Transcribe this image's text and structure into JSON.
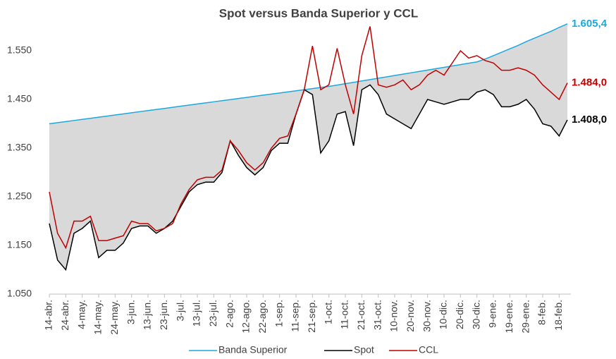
{
  "chart_data": {
    "type": "line",
    "title": "Spot versus Banda Superior y CCL",
    "categories": [
      "14-abr.",
      null,
      "24-abr.",
      null,
      "4-may.",
      null,
      "14-may.",
      null,
      "24-may.",
      null,
      "3-jun.",
      null,
      "13-jun.",
      null,
      "23-jun.",
      null,
      "3-jul.",
      null,
      "13-jul.",
      null,
      "23-jul.",
      null,
      "2-ago.",
      null,
      "12-ago.",
      null,
      "22-ago.",
      null,
      "1-sep.",
      null,
      "11-sep.",
      null,
      "21-sep.",
      null,
      "1-oct.",
      null,
      "11-oct.",
      null,
      "21-oct.",
      null,
      "31-oct.",
      null,
      "10-nov.",
      null,
      "20-nov.",
      null,
      "30-nov.",
      null,
      "10-dic.",
      null,
      "20-dic.",
      null,
      "30-dic.",
      null,
      "9-ene.",
      null,
      "19-ene.",
      null,
      "29-ene.",
      null,
      "8-feb.",
      null,
      "18-feb.",
      null
    ],
    "series": [
      {
        "name": "Banda Superior",
        "color": "#1ba8e0",
        "values": [
          1400,
          1402.3,
          1404.5,
          1406.8,
          1409.0,
          1411.3,
          1413.6,
          1415.8,
          1418.1,
          1420.3,
          1422.6,
          1424.9,
          1427.1,
          1429.4,
          1431.6,
          1433.9,
          1436.2,
          1438.4,
          1440.7,
          1442.9,
          1445.2,
          1447.5,
          1449.7,
          1452.0,
          1454.2,
          1456.5,
          1458.8,
          1461.0,
          1463.3,
          1465.5,
          1467.8,
          1470.1,
          1472.3,
          1474.6,
          1476.8,
          1479.6,
          1482.4,
          1485.2,
          1488.0,
          1490.8,
          1493.6,
          1496.4,
          1499.2,
          1502.0,
          1504.8,
          1507.6,
          1510.4,
          1513.2,
          1516.0,
          1518.8,
          1521.6,
          1524.4,
          1527.2,
          1533,
          1540,
          1547,
          1554,
          1561,
          1569,
          1576,
          1583,
          1590,
          1598,
          1605.4
        ],
        "value_labels": [
          null,
          null,
          null,
          null,
          null,
          null,
          null,
          null,
          null,
          null,
          null,
          null,
          null,
          null,
          null,
          null,
          null,
          null,
          null,
          null,
          null,
          null,
          null,
          null,
          null,
          null,
          null,
          null,
          null,
          null,
          null,
          null,
          null,
          null,
          null,
          null,
          null,
          null,
          null,
          null,
          null,
          null,
          null,
          null,
          null,
          null,
          null,
          null,
          null,
          null,
          null,
          null,
          null,
          null,
          null,
          null,
          null,
          null,
          null,
          null,
          null,
          null,
          null,
          "1.605,4"
        ]
      },
      {
        "name": "Spot",
        "color": "#000000",
        "values": [
          1195,
          1120,
          1100,
          1175,
          1185,
          1200,
          1125,
          1140,
          1140,
          1155,
          1185,
          1190,
          1190,
          1175,
          1185,
          1200,
          1230,
          1260,
          1275,
          1280,
          1280,
          1300,
          1365,
          1335,
          1310,
          1295,
          1310,
          1345,
          1360,
          1360,
          1420,
          1470,
          1460,
          1340,
          1365,
          1420,
          1425,
          1355,
          1470,
          1480,
          1460,
          1420,
          1410,
          1400,
          1390,
          1420,
          1450,
          1445,
          1440,
          1445,
          1450,
          1450,
          1465,
          1470,
          1460,
          1435,
          1435,
          1440,
          1450,
          1430,
          1400,
          1395,
          1375,
          1408.0
        ],
        "value_labels": [
          null,
          null,
          null,
          null,
          null,
          null,
          null,
          null,
          null,
          null,
          null,
          null,
          null,
          null,
          null,
          null,
          null,
          null,
          null,
          null,
          null,
          null,
          null,
          null,
          null,
          null,
          null,
          null,
          null,
          null,
          null,
          null,
          null,
          null,
          null,
          null,
          null,
          null,
          null,
          null,
          null,
          null,
          null,
          null,
          null,
          null,
          null,
          null,
          null,
          null,
          null,
          null,
          null,
          null,
          null,
          null,
          null,
          null,
          null,
          null,
          null,
          null,
          null,
          "1.408,0"
        ]
      },
      {
        "name": "CCL",
        "color": "#c00000",
        "values": [
          1260,
          1175,
          1145,
          1200,
          1200,
          1210,
          1160,
          1160,
          1165,
          1170,
          1200,
          1195,
          1195,
          1180,
          1185,
          1195,
          1235,
          1265,
          1285,
          1290,
          1290,
          1305,
          1365,
          1345,
          1320,
          1305,
          1320,
          1350,
          1370,
          1375,
          1420,
          1470,
          1560,
          1470,
          1480,
          1555,
          1480,
          1420,
          1540,
          1600,
          1480,
          1475,
          1480,
          1490,
          1470,
          1480,
          1500,
          1510,
          1500,
          1525,
          1550,
          1535,
          1540,
          1530,
          1525,
          1510,
          1510,
          1515,
          1510,
          1500,
          1480,
          1465,
          1450,
          1484.0
        ],
        "value_labels": [
          null,
          null,
          null,
          null,
          null,
          null,
          null,
          null,
          null,
          null,
          null,
          null,
          null,
          null,
          null,
          null,
          null,
          null,
          null,
          null,
          null,
          null,
          null,
          null,
          null,
          null,
          null,
          null,
          null,
          null,
          null,
          null,
          null,
          null,
          null,
          null,
          null,
          null,
          null,
          null,
          null,
          null,
          null,
          null,
          null,
          null,
          null,
          null,
          null,
          null,
          null,
          null,
          null,
          null,
          null,
          null,
          null,
          null,
          null,
          null,
          null,
          null,
          null,
          "1.484,0"
        ]
      }
    ],
    "area_color": "#d9d9d9",
    "ylim": [
      1050,
      1610
    ],
    "yticks": [
      {
        "value": 1050,
        "label": "1.050"
      },
      {
        "value": 1150,
        "label": "1.150"
      },
      {
        "value": 1250,
        "label": "1.250"
      },
      {
        "value": 1350,
        "label": "1.350"
      },
      {
        "value": 1450,
        "label": "1.450"
      },
      {
        "value": 1550,
        "label": "1.550"
      }
    ],
    "grid": false,
    "legend": "bottom"
  }
}
